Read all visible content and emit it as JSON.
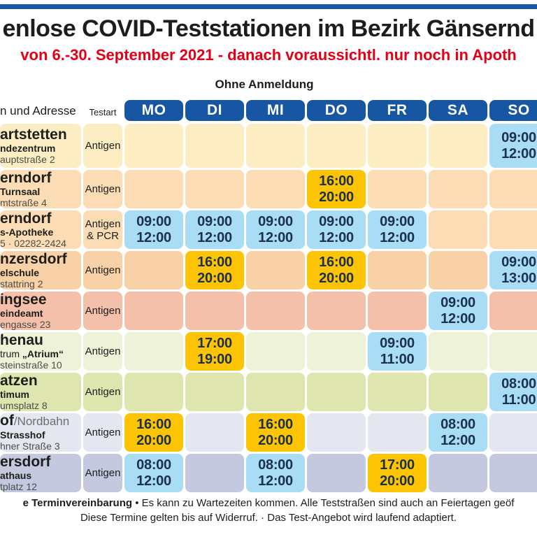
{
  "header": {
    "title": "enlose COVID-Teststationen im Bezirk Gänsernd",
    "subtitle": "von 6.-30. September 2021 - danach voraussichtl. nur noch in Apoth",
    "no_appointment_label": "Ohne Anmeldung"
  },
  "colors": {
    "accent_blue": "#1656a2",
    "subtitle_red": "#e30016",
    "gold_cell": "#fdc404",
    "blue_cell": "#a9dcf5",
    "time_text": "#1c3050"
  },
  "table": {
    "col_station": "n und Adresse",
    "col_testart": "Testart",
    "days": [
      "MO",
      "DI",
      "MI",
      "DO",
      "FR",
      "SA",
      "SO"
    ],
    "rows": [
      {
        "name": "artstetten",
        "name_suffix": "",
        "line2_prefix": "",
        "line2": "ndezentrum",
        "line3": "auptstraße 2",
        "testart": "Antigen",
        "bg": "#fdedc3",
        "slots": [
          null,
          null,
          null,
          null,
          null,
          null,
          {
            "from": "09:00",
            "to": "12:00",
            "style": "blue"
          }
        ]
      },
      {
        "name": "erndorf",
        "name_suffix": "",
        "line2_prefix": "",
        "line2": "Turnsaal",
        "line3": "mtstraße 4",
        "testart": "Antigen",
        "bg": "#fbdcb4",
        "slots": [
          null,
          null,
          null,
          {
            "from": "16:00",
            "to": "20:00",
            "style": "gold"
          },
          null,
          null,
          null
        ]
      },
      {
        "name": "erndorf",
        "name_suffix": "",
        "line2_prefix": "",
        "line2": "s-Apotheke",
        "line3": "5 · 02282-2424",
        "testart": "Antigen\n& PCR",
        "bg": "#fbdcb4",
        "slots": [
          {
            "from": "09:00",
            "to": "12:00",
            "style": "blue"
          },
          {
            "from": "09:00",
            "to": "12:00",
            "style": "blue"
          },
          {
            "from": "09:00",
            "to": "12:00",
            "style": "blue"
          },
          {
            "from": "09:00",
            "to": "12:00",
            "style": "blue"
          },
          {
            "from": "09:00",
            "to": "12:00",
            "style": "blue"
          },
          null,
          null
        ]
      },
      {
        "name": "nzersdorf",
        "name_suffix": "",
        "line2_prefix": "",
        "line2": "elschule",
        "line3": "stattring 2",
        "testart": "Antigen",
        "bg": "#f9d1a6",
        "slots": [
          null,
          {
            "from": "16:00",
            "to": "20:00",
            "style": "gold"
          },
          null,
          {
            "from": "16:00",
            "to": "20:00",
            "style": "gold"
          },
          null,
          null,
          {
            "from": "09:00",
            "to": "13:00",
            "style": "blue"
          }
        ]
      },
      {
        "name": "ingsee",
        "name_suffix": "",
        "line2_prefix": "",
        "line2": "eindeamt",
        "line3": "engasse 23",
        "testart": "Antigen",
        "bg": "#f4c0aa",
        "slots": [
          null,
          null,
          null,
          null,
          null,
          {
            "from": "09:00",
            "to": "12:00",
            "style": "blue"
          },
          null
        ]
      },
      {
        "name": "henau",
        "name_suffix": "",
        "line2_prefix": "trum ",
        "line2": "„Atrium“",
        "line3": "steinstraße 10",
        "testart": "Antigen",
        "bg": "#eef2d9",
        "slots": [
          null,
          {
            "from": "17:00",
            "to": "19:00",
            "style": "gold"
          },
          null,
          null,
          {
            "from": "09:00",
            "to": "11:00",
            "style": "blue"
          },
          null,
          null
        ]
      },
      {
        "name": "atzen",
        "name_suffix": "",
        "line2_prefix": "",
        "line2": "timum",
        "line3": "umsplatz 8",
        "testart": "Antigen",
        "bg": "#dfe5ae",
        "slots": [
          null,
          null,
          null,
          null,
          null,
          null,
          {
            "from": "08:00",
            "to": "11:00",
            "style": "blue"
          }
        ]
      },
      {
        "name": "of",
        "name_suffix": "/Nordbahn",
        "line2_prefix": "",
        "line2": "Strasshof",
        "line3": "hner Straße 3",
        "testart": "Antigen",
        "bg": "#e4e6f0",
        "slots": [
          {
            "from": "16:00",
            "to": "20:00",
            "style": "gold"
          },
          null,
          {
            "from": "16:00",
            "to": "20:00",
            "style": "gold"
          },
          null,
          null,
          {
            "from": "08:00",
            "to": "12:00",
            "style": "blue"
          },
          null
        ]
      },
      {
        "name": "ersdorf",
        "name_suffix": "",
        "line2_prefix": "",
        "line2": "athaus",
        "line3": "tplatz 12",
        "testart": "Antigen",
        "bg": "#c4c9e0",
        "slots": [
          {
            "from": "08:00",
            "to": "12:00",
            "style": "blue"
          },
          null,
          {
            "from": "08:00",
            "to": "12:00",
            "style": "blue"
          },
          null,
          {
            "from": "17:00",
            "to": "20:00",
            "style": "gold"
          },
          null,
          null
        ]
      }
    ]
  },
  "footer": {
    "emphasis": "e Terminvereinbarung",
    "line1_rest": " • Es kann zu Wartezeiten kommen. Alle Teststraßen sind auch an Feiertagen geöf",
    "line2": "Diese Termine gelten bis auf Widerruf. · Das Test-Angebot wird laufend adaptiert."
  }
}
